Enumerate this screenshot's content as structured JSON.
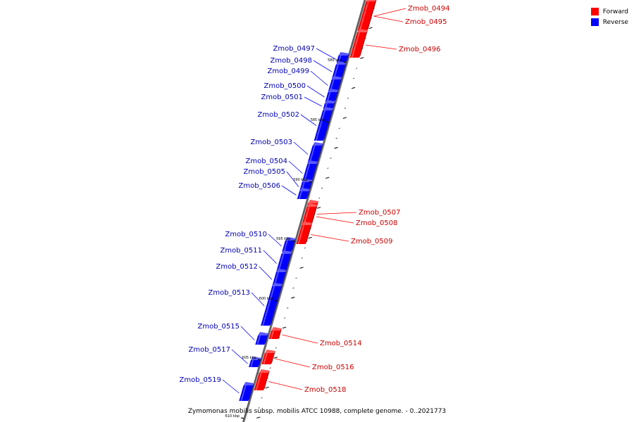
{
  "caption": "Zymomonas mobilis subsp. mobilis ATCC 10988, complete genome. - 0..2021773",
  "colors": {
    "forward": "#ff0000",
    "reverse": "#0000ff",
    "axis": "#808080"
  },
  "legend": [
    {
      "label": "Forward",
      "color": "#ff0000"
    },
    {
      "label": "Reverse",
      "color": "#0000ff"
    }
  ],
  "scale_marks": [
    "580 kbp",
    "585 kbp",
    "590 kbp",
    "595 kbp",
    "600 kbp",
    "605 kbp",
    "610 kbp"
  ],
  "genes": [
    {
      "name": "Zmob_0494",
      "strand": "forward"
    },
    {
      "name": "Zmob_0495",
      "strand": "forward"
    },
    {
      "name": "Zmob_0496",
      "strand": "forward"
    },
    {
      "name": "Zmob_0497",
      "strand": "reverse"
    },
    {
      "name": "Zmob_0498",
      "strand": "reverse"
    },
    {
      "name": "Zmob_0499",
      "strand": "reverse"
    },
    {
      "name": "Zmob_0500",
      "strand": "reverse"
    },
    {
      "name": "Zmob_0501",
      "strand": "reverse"
    },
    {
      "name": "Zmob_0502",
      "strand": "reverse"
    },
    {
      "name": "Zmob_0503",
      "strand": "reverse"
    },
    {
      "name": "Zmob_0504",
      "strand": "reverse"
    },
    {
      "name": "Zmob_0505",
      "strand": "reverse"
    },
    {
      "name": "Zmob_0506",
      "strand": "reverse"
    },
    {
      "name": "Zmob_0507",
      "strand": "forward"
    },
    {
      "name": "Zmob_0508",
      "strand": "forward"
    },
    {
      "name": "Zmob_0509",
      "strand": "forward"
    },
    {
      "name": "Zmob_0510",
      "strand": "reverse"
    },
    {
      "name": "Zmob_0511",
      "strand": "reverse"
    },
    {
      "name": "Zmob_0512",
      "strand": "reverse"
    },
    {
      "name": "Zmob_0513",
      "strand": "reverse"
    },
    {
      "name": "Zmob_0514",
      "strand": "forward"
    },
    {
      "name": "Zmob_0515",
      "strand": "reverse"
    },
    {
      "name": "Zmob_0516",
      "strand": "forward"
    },
    {
      "name": "Zmob_0517",
      "strand": "reverse"
    },
    {
      "name": "Zmob_0518",
      "strand": "forward"
    },
    {
      "name": "Zmob_0519",
      "strand": "reverse"
    }
  ]
}
